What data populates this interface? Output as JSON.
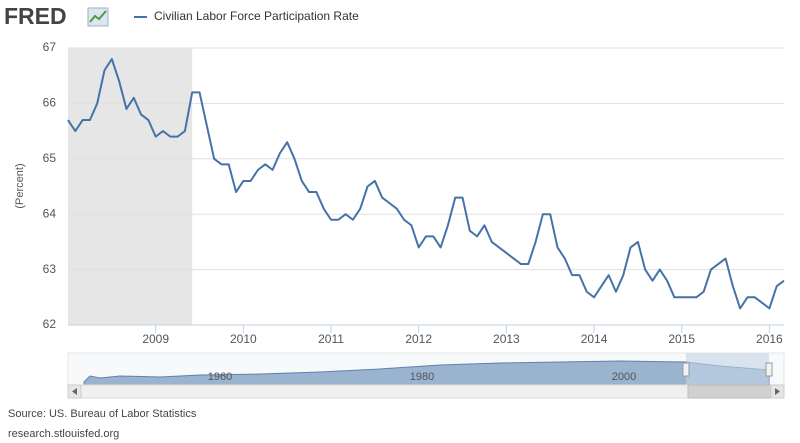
{
  "logo": "FRED",
  "chart_data": {
    "type": "line",
    "ylabel": "(Percent)",
    "categories": [
      null,
      null,
      null,
      null,
      null,
      null,
      null,
      null,
      null,
      null,
      null,
      null,
      "2009",
      null,
      null,
      null,
      null,
      null,
      null,
      null,
      null,
      null,
      null,
      null,
      "2010",
      null,
      null,
      null,
      null,
      null,
      null,
      null,
      null,
      null,
      null,
      null,
      "2011",
      null,
      null,
      null,
      null,
      null,
      null,
      null,
      null,
      null,
      null,
      null,
      "2012",
      null,
      null,
      null,
      null,
      null,
      null,
      null,
      null,
      null,
      null,
      null,
      "2013",
      null,
      null,
      null,
      null,
      null,
      null,
      null,
      null,
      null,
      null,
      null,
      "2014",
      null,
      null,
      null,
      null,
      null,
      null,
      null,
      null,
      null,
      null,
      null,
      "2015",
      null,
      null,
      null,
      null,
      null,
      null,
      null,
      null,
      null,
      null,
      null,
      "2016",
      null,
      null
    ],
    "series": [
      {
        "name": "Civilian Labor Force Participation Rate",
        "color": "#4572a7",
        "values": [
          65.7,
          65.5,
          65.7,
          65.7,
          66.0,
          66.6,
          66.8,
          66.4,
          65.9,
          66.1,
          65.8,
          65.7,
          65.4,
          65.5,
          65.4,
          65.4,
          65.5,
          66.2,
          66.2,
          65.6,
          65.0,
          64.9,
          64.9,
          64.4,
          64.6,
          64.6,
          64.8,
          64.9,
          64.8,
          65.1,
          65.3,
          65.0,
          64.6,
          64.4,
          64.4,
          64.1,
          63.9,
          63.9,
          64.0,
          63.9,
          64.1,
          64.5,
          64.6,
          64.3,
          64.2,
          64.1,
          63.9,
          63.8,
          63.4,
          63.6,
          63.6,
          63.4,
          63.8,
          64.3,
          64.3,
          63.7,
          63.6,
          63.8,
          63.5,
          63.4,
          63.3,
          63.2,
          63.1,
          63.1,
          63.5,
          64.0,
          64.0,
          63.4,
          63.2,
          62.9,
          62.9,
          62.6,
          62.5,
          62.7,
          62.9,
          62.6,
          62.9,
          63.4,
          63.5,
          63.0,
          62.8,
          63.0,
          62.8,
          62.5,
          62.5,
          62.5,
          62.5,
          62.6,
          63.0,
          63.1,
          63.2,
          62.7,
          62.3,
          62.5,
          62.5,
          62.4,
          62.3,
          62.7,
          62.8
        ]
      }
    ],
    "ylim": [
      62,
      67
    ],
    "yticks": [
      62,
      63,
      64,
      65,
      66,
      67
    ],
    "grid": true,
    "shaded_range": [
      0,
      17
    ],
    "shade_color": "#e6e6e6"
  },
  "navigator": {
    "labels": [
      "1960",
      "1980",
      "2000"
    ]
  },
  "footer": {
    "source": "Source: US. Bureau of Labor Statistics",
    "site": "research.stlouisfed.org"
  }
}
